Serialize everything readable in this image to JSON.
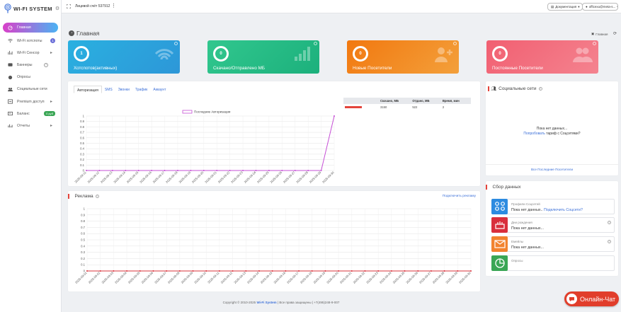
{
  "sidebar": {
    "logo_text": "WI-FI SYSTEM",
    "items": [
      {
        "label": "Главная",
        "icon": "home-icon"
      },
      {
        "label": "Wi-Fi хотспоты",
        "icon": "wifi-icon",
        "count": "1"
      },
      {
        "label": "Wi-Fi Сенсор",
        "icon": "sensor-icon"
      },
      {
        "label": "Баннеры",
        "icon": "banner-icon"
      },
      {
        "label": "Опросы",
        "icon": "poll-icon"
      },
      {
        "label": "Социальные сети",
        "icon": "users-icon"
      },
      {
        "label": "Premium доступ",
        "icon": "premium-icon"
      },
      {
        "label": "Баланс",
        "icon": "wallet-icon",
        "badge": "0 руб"
      },
      {
        "label": "Отчеты",
        "icon": "reports-icon"
      }
    ]
  },
  "topbar": {
    "account": "Лицевой счёт 537912",
    "docs": "Документация",
    "user": "officexu@meta-s..."
  },
  "header": {
    "title": "Главная",
    "crumb": "Главная"
  },
  "cards": [
    {
      "value": "1",
      "label": "Хотспотов(активных)",
      "color_from": "#2ab0e0",
      "color_to": "#2d97d8"
    },
    {
      "value": "0",
      "label": "Скачано/Отправлено МБ",
      "color_from": "#31c78e",
      "color_to": "#1cb07c"
    },
    {
      "value": "0",
      "label": "Новые Посетители",
      "color_from": "#f2780f",
      "color_to": "#f3a03b"
    },
    {
      "value": "0",
      "label": "Постоянные Посетители",
      "color_from": "#f15f71",
      "color_to": "#f4838f"
    }
  ],
  "auth_panel": {
    "tabs": [
      "Авторизация",
      "SMS",
      "Звонки",
      "Трафик",
      "Аккаунт"
    ],
    "table": {
      "headers": [
        "",
        "Скачано, МБ",
        "Отдано, МБ",
        "Время, мин"
      ],
      "row": [
        "",
        "3150",
        "522",
        "2"
      ]
    }
  },
  "ads_panel": {
    "title": "Реклама",
    "link": "Подключить рекламу"
  },
  "social_panel": {
    "title": "Социальные сети",
    "empty": "Пока нет данных...",
    "try_link": "Попробовать",
    "try_rest": "тариф с Соцсетями?",
    "footer_link": "Все Последние Посетители"
  },
  "collect_panel": {
    "title": "Сбор данных",
    "rows": [
      {
        "title": "Профили Соцсетей",
        "value": "Пока нет данных..",
        "link": "Подключить Соцсети?",
        "icon": "social-profiles-icon",
        "color": "#2d8be0"
      },
      {
        "title": "Дни рождения",
        "value": "Пока нет данных...",
        "link": "",
        "icon": "birthday-icon",
        "color": "#d92f3c"
      },
      {
        "title": "Емейлы",
        "value": "Пока нет данных...",
        "link": "",
        "icon": "email-icon",
        "color": "#f2832f"
      },
      {
        "title": "Опросы",
        "value": "",
        "link": "",
        "icon": "polls-pie-icon",
        "color": "#3aa655"
      }
    ]
  },
  "footer": {
    "prefix": "Copyright © 2010-2025",
    "brand": "Wi-Fi System",
    "suffix": "| Все права защищены | +7(495)248-9-007"
  },
  "chat": {
    "label": "Онлайн-Чат"
  },
  "chart_data": [
    {
      "type": "line",
      "title": "",
      "legend": [
        "Последние Авторизации"
      ],
      "ylim": [
        0,
        1
      ],
      "yticks": [
        "0",
        "0.1",
        "0.2",
        "0.3",
        "0.4",
        "0.5",
        "0.6",
        "0.7",
        "0.8",
        "0.9",
        "1"
      ],
      "x": [
        "2025-09-11",
        "2025-09-12",
        "2025-09-13",
        "2025-09-14",
        "2025-09-15",
        "2025-09-16",
        "2025-09-17",
        "2025-09-18",
        "2025-09-19",
        "2025-09-20",
        "2025-09-21",
        "2025-09-22",
        "2025-09-23",
        "2025-09-24",
        "2025-09-25",
        "2025-09-26",
        "2025-09-27",
        "2025-09-28",
        "2025-09-29",
        "2025-09-30"
      ],
      "series": [
        {
          "name": "Последние Авторизации",
          "color": "#c64fd6",
          "values": [
            0,
            0,
            0,
            0,
            0,
            0,
            0,
            0,
            0,
            0,
            0,
            0,
            0,
            0,
            0,
            0,
            0,
            0,
            0,
            1
          ]
        }
      ]
    },
    {
      "type": "line",
      "title": "",
      "ylim": [
        0,
        1
      ],
      "yticks": [
        "0",
        "0.1",
        "0.2",
        "0.3",
        "0.4",
        "0.5",
        "0.6",
        "0.7",
        "0.8",
        "0.9",
        "1"
      ],
      "x": [
        "2025-09-01",
        "2025-09-02",
        "2025-09-03",
        "2025-09-04",
        "2025-09-05",
        "2025-09-06",
        "2025-09-07",
        "2025-09-08",
        "2025-09-09",
        "2025-09-10",
        "2025-09-11",
        "2025-09-12",
        "2025-09-13",
        "2025-09-14",
        "2025-09-15",
        "2025-09-16",
        "2025-09-17",
        "2025-09-18",
        "2025-09-19",
        "2025-09-20",
        "2025-09-21",
        "2025-09-22",
        "2025-09-23",
        "2025-09-24",
        "2025-09-25",
        "2025-09-26",
        "2025-09-27",
        "2025-09-28",
        "2025-09-29",
        "2025-09-30"
      ],
      "series": [
        {
          "name": "",
          "color": "#d9303a",
          "values": [
            0,
            0,
            0,
            0,
            0,
            0,
            0,
            0,
            0,
            0,
            0,
            0,
            0,
            0,
            0,
            0,
            0,
            0,
            0,
            0,
            0,
            0,
            0,
            0,
            0,
            0,
            0,
            0,
            0,
            0
          ]
        }
      ]
    }
  ]
}
